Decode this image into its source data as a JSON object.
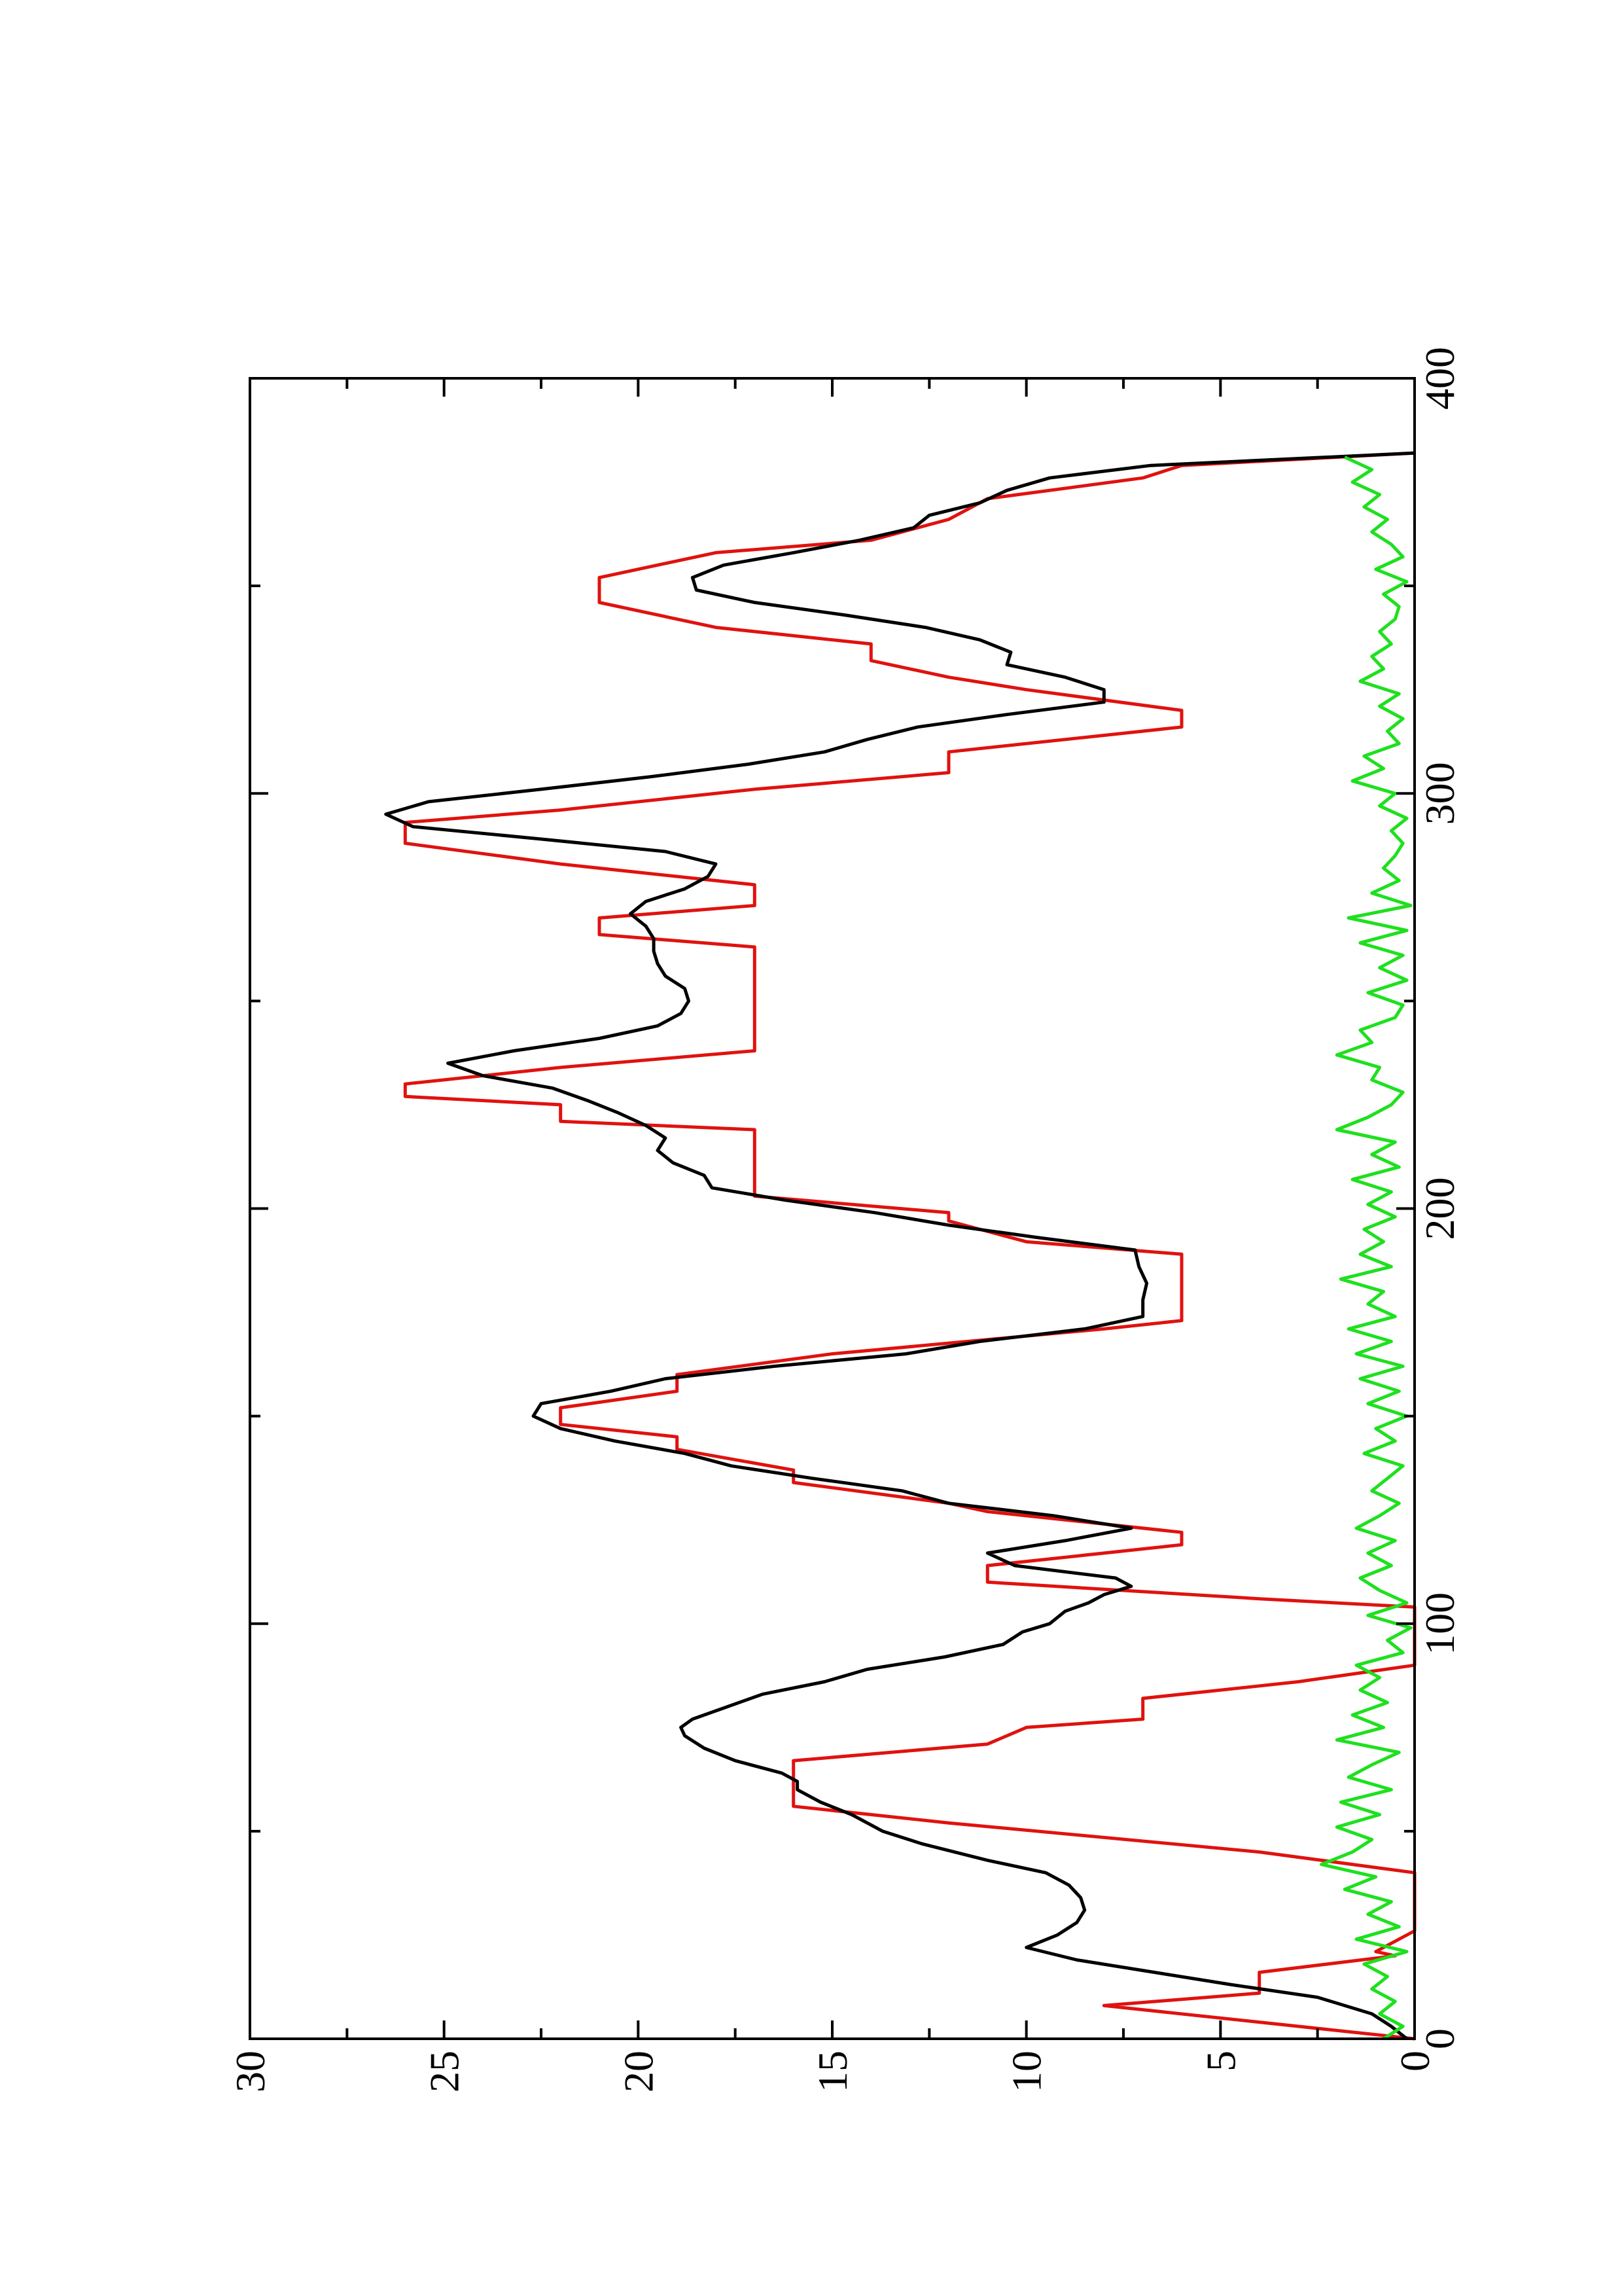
{
  "chart_data": {
    "type": "line",
    "orientation": "rotated 90 degrees counter-clockwise (x axis runs bottom-to-top on the page, y axis runs right-to-left)",
    "title": "",
    "xlabel": "",
    "ylabel": "",
    "xlim": [
      0,
      400
    ],
    "ylim": [
      0,
      30
    ],
    "grid": false,
    "x_ticks": [
      "0",
      "100",
      "200",
      "300",
      "400"
    ],
    "y_ticks": [
      "0",
      "5",
      "10",
      "15",
      "20",
      "25",
      "30"
    ],
    "colors": {
      "black": "#000000",
      "red": "#e0120f",
      "green": "#1ee01e"
    },
    "series": [
      {
        "color": "#e0120f",
        "x": [
          0,
          4,
          4,
          8,
          8,
          11,
          16,
          20,
          21,
          26,
          27,
          34,
          40,
          45,
          52,
          56,
          57,
          65,
          67,
          71,
          75,
          77,
          82,
          86,
          90,
          94,
          100,
          104,
          106,
          110,
          114,
          119,
          122,
          127,
          129,
          134,
          137,
          142,
          145,
          148,
          152,
          156,
          160,
          165,
          171,
          173,
          185,
          189,
          192,
          197,
          199,
          203,
          208,
          212,
          219,
          221,
          225,
          227,
          230,
          234,
          238,
          243,
          248,
          257,
          263,
          266,
          270,
          273,
          278,
          283,
          288,
          293,
          296,
          301,
          305,
          310,
          316,
          320,
          325,
          328,
          332,
          336,
          340,
          346,
          352,
          358,
          361,
          366,
          371,
          376,
          379,
          382
        ],
        "y": [
          0,
          4,
          4,
          8,
          8,
          4,
          4,
          0.5,
          1,
          0,
          0,
          0,
          0,
          4,
          12,
          16,
          16,
          16,
          16,
          11,
          10,
          7,
          7,
          3,
          0,
          0,
          0,
          0,
          4,
          11,
          11,
          6,
          6,
          11,
          12,
          16,
          16,
          19,
          19,
          22,
          22,
          19,
          19,
          15,
          8,
          6,
          6,
          6,
          10,
          12,
          12,
          17,
          17,
          17,
          17,
          22,
          22,
          26,
          26,
          22,
          17,
          17,
          17,
          17,
          17,
          21,
          21,
          17,
          17,
          22,
          26,
          26,
          22,
          17,
          12,
          12,
          6,
          6,
          10,
          12,
          14,
          14,
          18,
          21,
          21,
          18,
          14,
          12,
          11,
          7,
          6,
          0
        ]
      },
      {
        "color": "#000000",
        "x": [
          0,
          3,
          6,
          10,
          13,
          16,
          19,
          22,
          25,
          28,
          31,
          34,
          37,
          40,
          43,
          47,
          50,
          54,
          57,
          60,
          62,
          64,
          67,
          70,
          73,
          75,
          77,
          80,
          83,
          86,
          89,
          92,
          95,
          98,
          100,
          103,
          105,
          107,
          109,
          111,
          114,
          117,
          120,
          123,
          126,
          129,
          132,
          135,
          138,
          141,
          144,
          147,
          150,
          153,
          156,
          159,
          162,
          165,
          168,
          171,
          174,
          178,
          182,
          186,
          190,
          193,
          196,
          199,
          202,
          205,
          208,
          211,
          214,
          217,
          220,
          223,
          226,
          229,
          232,
          235,
          238,
          241,
          244,
          247,
          250,
          253,
          256,
          259,
          262,
          265,
          268,
          271,
          274,
          277,
          280,
          283,
          286,
          289,
          292,
          295,
          298,
          301,
          304,
          307,
          310,
          313,
          316,
          319,
          322,
          325,
          328,
          331,
          334,
          337,
          340,
          343,
          346,
          349,
          352,
          355,
          358,
          361,
          364,
          367,
          370,
          373,
          376,
          379,
          382
        ],
        "y": [
          0.2,
          0.6,
          1.1,
          2.5,
          4.7,
          6.7,
          8.7,
          10,
          9.2,
          8.7,
          8.5,
          8.6,
          8.9,
          9.5,
          11,
          12.7,
          13.7,
          14.5,
          15.3,
          15.9,
          15.9,
          16.3,
          17.5,
          18.3,
          18.8,
          18.9,
          18.6,
          17.7,
          16.8,
          15.2,
          14.1,
          12.1,
          10.6,
          10.1,
          9.4,
          9.0,
          8.4,
          8.0,
          7.3,
          7.7,
          10.3,
          11.0,
          9.0,
          7.3,
          9.3,
          12.0,
          13.2,
          15.5,
          17.6,
          18.8,
          20.6,
          22.0,
          22.7,
          22.5,
          20.7,
          19.3,
          16.5,
          13.1,
          11.2,
          8.5,
          7.0,
          7.0,
          6.9,
          7.1,
          7.2,
          9.7,
          12.0,
          13.9,
          16.2,
          18.1,
          18.3,
          19.1,
          19.5,
          19.3,
          19.8,
          20.5,
          21.3,
          22.2,
          24.0,
          24.9,
          23.2,
          21.0,
          19.5,
          18.9,
          18.7,
          18.8,
          19.3,
          19.5,
          19.6,
          19.6,
          19.8,
          20.2,
          19.8,
          18.8,
          18.2,
          18.0,
          19.3,
          22.5,
          25.8,
          26.5,
          25.4,
          22.5,
          19.7,
          17.2,
          15.2,
          14.1,
          12.8,
          10.5,
          8.0,
          8.0,
          9.0,
          10.5,
          10.4,
          11.2,
          12.6,
          14.7,
          17.0,
          18.5,
          18.6,
          17.8,
          16.0,
          14.3,
          12.9,
          12.5,
          11.2,
          10.5,
          9.4,
          6.8,
          0
        ]
      },
      {
        "color": "#1ee01e",
        "x": [
          0,
          3,
          6,
          9,
          12,
          15,
          18,
          21,
          24,
          27,
          30,
          33,
          36,
          39,
          42,
          45,
          48,
          51,
          54,
          57,
          60,
          63,
          66,
          69,
          72,
          75,
          78,
          81,
          84,
          87,
          90,
          93,
          96,
          99,
          102,
          105,
          108,
          111,
          114,
          117,
          120,
          123,
          126,
          129,
          132,
          135,
          138,
          141,
          144,
          147,
          150,
          153,
          156,
          159,
          162,
          165,
          168,
          171,
          174,
          177,
          180,
          183,
          186,
          189,
          192,
          195,
          198,
          201,
          204,
          207,
          210,
          213,
          216,
          219,
          222,
          225,
          228,
          231,
          234,
          237,
          240,
          243,
          246,
          249,
          252,
          255,
          258,
          261,
          264,
          267,
          270,
          273,
          276,
          279,
          282,
          285,
          288,
          291,
          294,
          297,
          300,
          303,
          306,
          309,
          312,
          315,
          318,
          321,
          324,
          327,
          330,
          333,
          336,
          339,
          342,
          345,
          348,
          351,
          354,
          357,
          360,
          363,
          366,
          369,
          372,
          375,
          378,
          381
        ],
        "y": [
          0.8,
          0.3,
          0.9,
          0.5,
          1.1,
          0.7,
          1.3,
          0.2,
          1.5,
          0.4,
          1.2,
          0.6,
          1.8,
          1.0,
          2.4,
          1.6,
          1.1,
          2.0,
          0.9,
          1.9,
          0.6,
          1.7,
          1.1,
          0.4,
          2.0,
          0.8,
          1.6,
          0.7,
          1.4,
          0.9,
          1.5,
          0.3,
          0.7,
          0.1,
          1.2,
          0.2,
          0.9,
          1.4,
          0.6,
          1.2,
          0.5,
          1.5,
          0.9,
          0.4,
          1.1,
          0.7,
          0.3,
          1.3,
          0.5,
          1.0,
          0.2,
          1.2,
          0.4,
          1.4,
          0.3,
          1.5,
          0.6,
          1.7,
          0.5,
          1.2,
          0.8,
          1.9,
          0.6,
          1.4,
          0.8,
          1.3,
          0.5,
          1.2,
          0.6,
          1.6,
          0.4,
          1.1,
          0.5,
          2.0,
          1.2,
          0.6,
          0.3,
          1.1,
          0.9,
          2.0,
          1.1,
          1.4,
          0.5,
          0.3,
          1.2,
          0.2,
          0.9,
          0.3,
          1.4,
          0.2,
          1.7,
          0.1,
          1.1,
          0.4,
          0.8,
          0.5,
          0.3,
          0.6,
          0.2,
          0.9,
          0.5,
          1.6,
          0.8,
          1.3,
          0.4,
          0.7,
          0.3,
          0.9,
          0.4,
          1.4,
          0.8,
          1.1,
          0.6,
          0.9,
          0.5,
          0.4,
          0.8,
          0.2,
          1.0,
          0.3,
          0.6,
          1.1,
          0.7,
          1.3,
          0.9,
          1.6,
          1.1,
          1.8
        ]
      }
    ]
  }
}
